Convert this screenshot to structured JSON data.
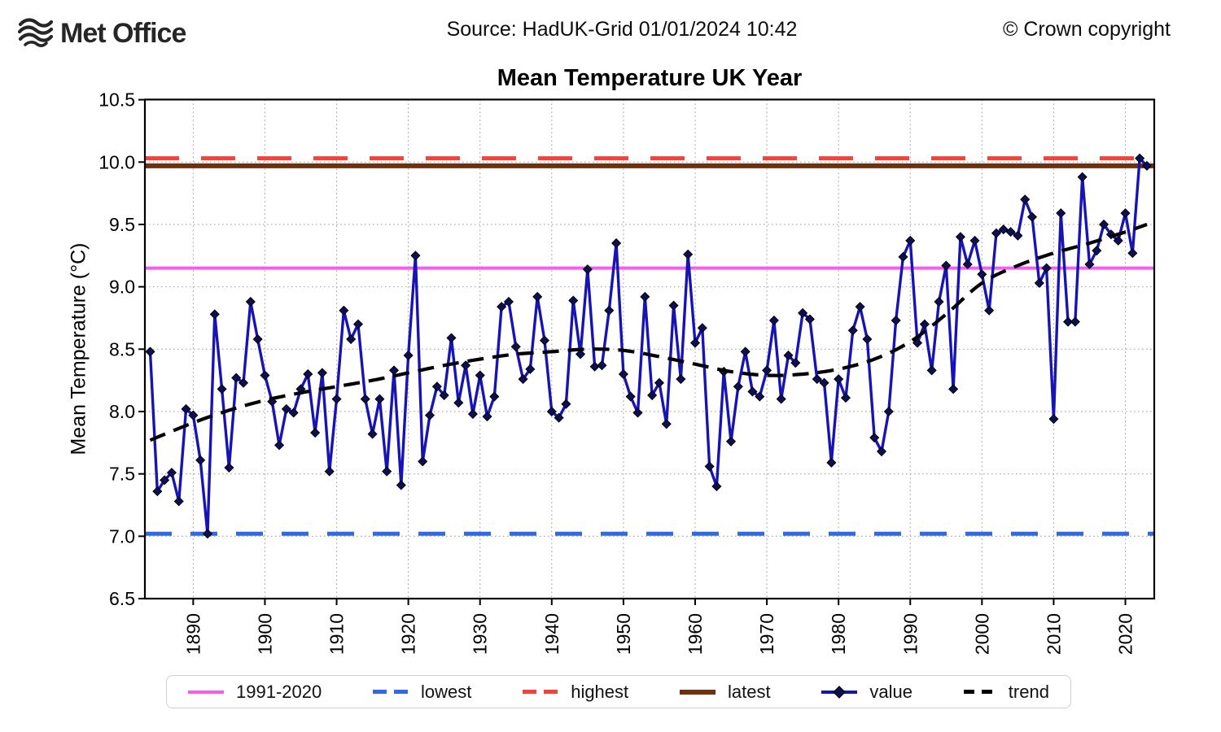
{
  "header": {
    "logo_text": "Met Office",
    "source": "Source: HadUK-Grid 01/01/2024 10:42",
    "copyright": "© Crown copyright"
  },
  "chart_data": {
    "type": "line",
    "title": "Mean Temperature UK Year",
    "xlabel": "",
    "ylabel": "Mean Temperature (°C)",
    "ylim": [
      6.5,
      10.5
    ],
    "grid": true,
    "legend_position": "bottom",
    "ytick_values": [
      6.5,
      7.0,
      7.5,
      8.0,
      8.5,
      9.0,
      9.5,
      10.0,
      10.5
    ],
    "ytick_labels": [
      "6.5",
      "7.0",
      "7.5",
      "8.0",
      "8.5",
      "9.0",
      "9.5",
      "10.0",
      "10.5"
    ],
    "xtick_values": [
      1890,
      1900,
      1910,
      1920,
      1930,
      1940,
      1950,
      1960,
      1970,
      1980,
      1990,
      2000,
      2010,
      2020
    ],
    "xtick_labels": [
      "1890",
      "1900",
      "1910",
      "1920",
      "1930",
      "1940",
      "1950",
      "1960",
      "1970",
      "1980",
      "1990",
      "2000",
      "2010",
      "2020"
    ],
    "series": [
      {
        "name": "1991-2020",
        "type": "hline",
        "value": 9.15,
        "color": "#F75BF2",
        "style": "solid"
      },
      {
        "name": "lowest",
        "type": "hline",
        "value": 7.02,
        "color": "#3069E3",
        "style": "dashed"
      },
      {
        "name": "highest",
        "type": "hline",
        "value": 10.03,
        "color": "#F6413B",
        "style": "dashed"
      },
      {
        "name": "latest",
        "type": "hline",
        "value": 9.97,
        "color": "#6E3110",
        "style": "solid"
      },
      {
        "name": "value",
        "type": "line-marker",
        "color": "#1814B4",
        "marker": "diamond",
        "marker_color": "#0E0E52",
        "x_start": 1884,
        "values": [
          8.48,
          7.36,
          7.45,
          7.51,
          7.28,
          8.02,
          7.97,
          7.61,
          7.02,
          8.78,
          8.18,
          7.55,
          8.27,
          8.23,
          8.88,
          8.58,
          8.29,
          8.08,
          7.73,
          8.02,
          7.99,
          8.18,
          8.3,
          7.83,
          8.31,
          7.52,
          8.1,
          8.81,
          8.58,
          8.7,
          8.1,
          7.82,
          8.1,
          7.52,
          8.33,
          7.41,
          8.45,
          9.25,
          7.6,
          7.97,
          8.2,
          8.13,
          8.59,
          8.07,
          8.37,
          7.98,
          8.29,
          7.96,
          8.12,
          8.84,
          8.88,
          8.52,
          8.26,
          8.34,
          8.92,
          8.57,
          8.0,
          7.95,
          8.06,
          8.89,
          8.46,
          9.14,
          8.36,
          8.37,
          8.81,
          9.35,
          8.3,
          8.12,
          7.99,
          8.92,
          8.13,
          8.23,
          7.9,
          8.85,
          8.26,
          9.26,
          8.55,
          8.67,
          7.56,
          7.4,
          8.32,
          7.76,
          8.2,
          8.48,
          8.16,
          8.12,
          8.33,
          8.73,
          8.1,
          8.45,
          8.39,
          8.79,
          8.74,
          8.26,
          8.23,
          7.59,
          8.26,
          8.11,
          8.65,
          8.84,
          8.58,
          7.79,
          7.68,
          8.0,
          8.73,
          9.24,
          9.37,
          8.55,
          8.7,
          8.33,
          8.88,
          9.17,
          8.18,
          9.4,
          9.18,
          9.37,
          9.1,
          8.81,
          9.43,
          9.46,
          9.44,
          9.41,
          9.7,
          9.56,
          9.03,
          9.15,
          7.94,
          9.59,
          8.72,
          8.72,
          9.88,
          9.18,
          9.29,
          9.5,
          9.42,
          9.37,
          9.59,
          9.27,
          10.03,
          9.97
        ]
      },
      {
        "name": "trend",
        "type": "trend-dashed",
        "color": "#000000",
        "anchors": [
          [
            1884,
            7.77
          ],
          [
            1890,
            7.91
          ],
          [
            1895,
            8.01
          ],
          [
            1900,
            8.09
          ],
          [
            1905,
            8.15
          ],
          [
            1910,
            8.2
          ],
          [
            1915,
            8.25
          ],
          [
            1920,
            8.31
          ],
          [
            1925,
            8.37
          ],
          [
            1930,
            8.42
          ],
          [
            1935,
            8.46
          ],
          [
            1940,
            8.48
          ],
          [
            1945,
            8.5
          ],
          [
            1950,
            8.49
          ],
          [
            1955,
            8.44
          ],
          [
            1960,
            8.38
          ],
          [
            1965,
            8.32
          ],
          [
            1970,
            8.29
          ],
          [
            1975,
            8.3
          ],
          [
            1980,
            8.34
          ],
          [
            1985,
            8.42
          ],
          [
            1990,
            8.56
          ],
          [
            1995,
            8.78
          ],
          [
            2000,
            9.03
          ],
          [
            2005,
            9.17
          ],
          [
            2010,
            9.27
          ],
          [
            2015,
            9.35
          ],
          [
            2020,
            9.44
          ],
          [
            2023,
            9.5
          ]
        ]
      }
    ]
  }
}
